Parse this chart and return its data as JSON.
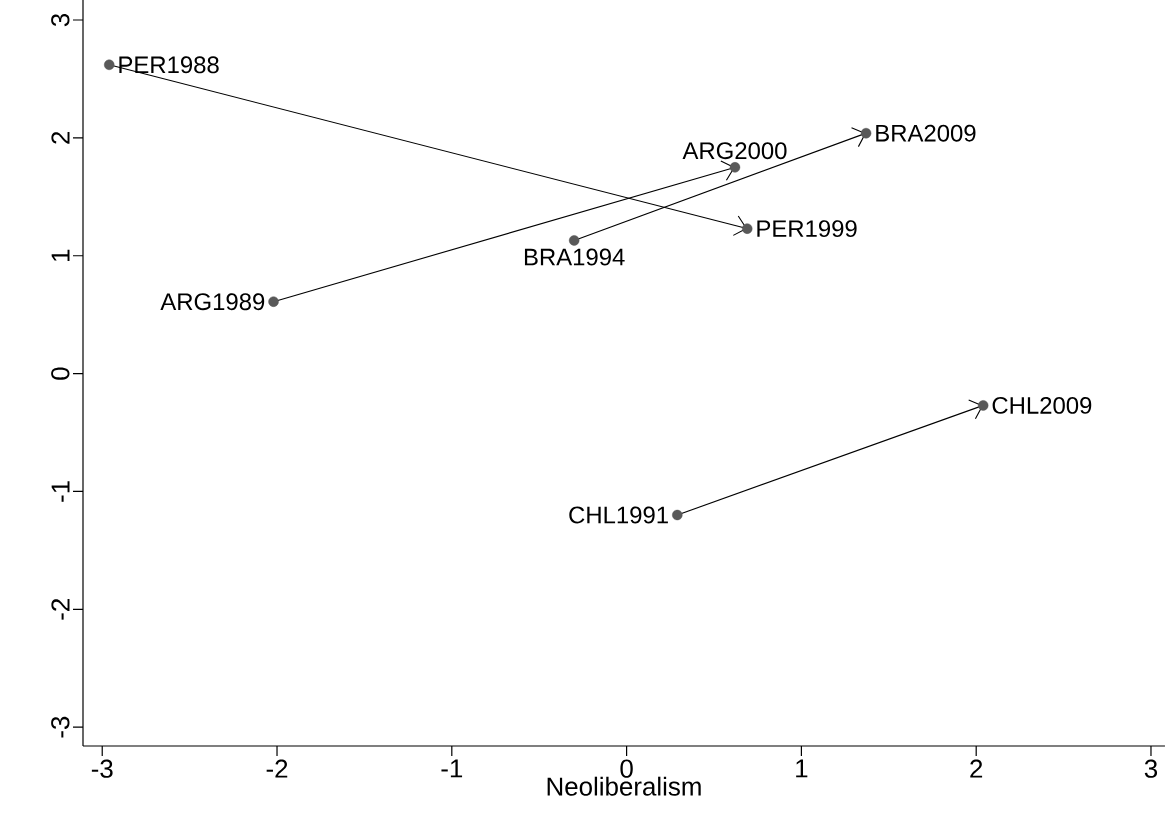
{
  "chart_data": {
    "type": "scatter",
    "xlabel": "Neoliberalism",
    "xlim": [
      -3.11,
      3.08
    ],
    "ylim": [
      -3.16,
      3.17
    ],
    "xticks": [
      -3,
      -2,
      -1,
      0,
      1,
      2,
      3
    ],
    "yticks": [
      -3,
      -2,
      -1,
      0,
      1,
      2,
      3
    ],
    "marker": "circle",
    "series": [
      {
        "color": "#595959",
        "x": [
          -2.96,
          0.69,
          -2.02,
          0.62,
          -0.3,
          1.37,
          0.29,
          2.04
        ],
        "values": [
          2.62,
          1.23,
          0.61,
          1.75,
          1.13,
          2.04,
          -1.2,
          -0.27
        ]
      },
      {
        "type": "line",
        "marker": "none",
        "color": "#000000",
        "x": [
          -2.96,
          0.69
        ],
        "values": [
          2.62,
          1.23
        ]
      },
      {
        "type": "line",
        "marker": "none",
        "color": "#000000",
        "x": [
          -2.02,
          0.62
        ],
        "values": [
          0.61,
          1.75
        ]
      },
      {
        "type": "line",
        "marker": "none",
        "color": "#000000",
        "x": [
          -0.3,
          1.37
        ],
        "values": [
          1.13,
          2.04
        ]
      },
      {
        "type": "line",
        "marker": "none",
        "color": "#000000",
        "x": [
          0.29,
          2.04
        ],
        "values": [
          -1.2,
          -0.27
        ]
      }
    ],
    "annotations": [
      {
        "text": "PER1988",
        "x": -2.96,
        "y": 2.62
      },
      {
        "text": "PER1999",
        "x": 0.69,
        "y": 1.23
      },
      {
        "text": "ARG1989",
        "x": -2.02,
        "y": 0.61
      },
      {
        "text": "ARG2000",
        "x": 0.62,
        "y": 1.75
      },
      {
        "text": "BRA1994",
        "x": -0.3,
        "y": 1.13
      },
      {
        "text": "BRA2009",
        "x": 1.37,
        "y": 2.04
      },
      {
        "text": "CHL1991",
        "x": 0.29,
        "y": -1.2
      },
      {
        "text": "CHL2009",
        "x": 2.04,
        "y": -0.27
      }
    ]
  }
}
